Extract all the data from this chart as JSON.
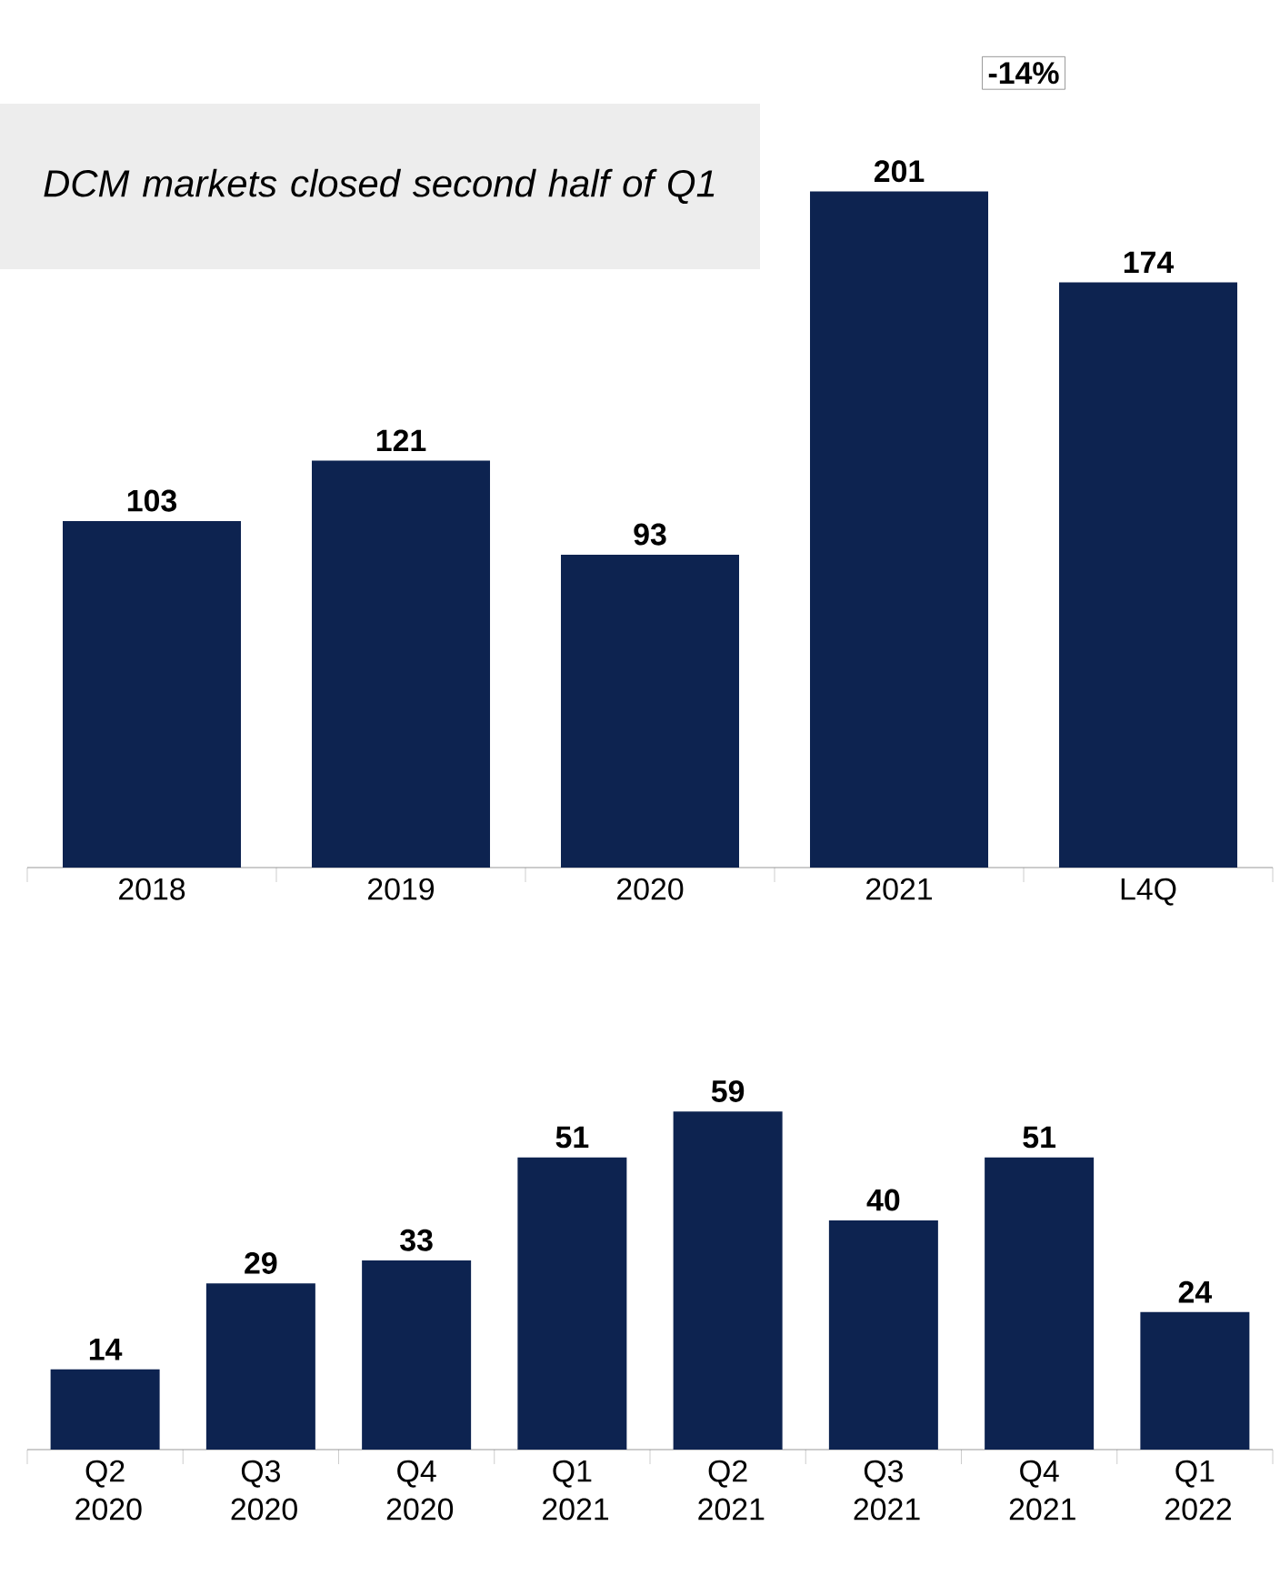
{
  "chart_data": [
    {
      "type": "bar",
      "categories": [
        "2018",
        "2019",
        "2020",
        "2021",
        "L4Q"
      ],
      "values": [
        103,
        121,
        93,
        201,
        174
      ],
      "color": "#0d2350",
      "data_labels": true,
      "annotations": [
        "DCM markets closed second half of Q1",
        "-14%"
      ]
    },
    {
      "type": "bar",
      "categories": [
        "Q2 2020",
        "Q3 2020",
        "Q4 2020",
        "Q1 2021",
        "Q2 2021",
        "Q3 2021",
        "Q4 2021",
        "Q1 2022"
      ],
      "values": [
        14,
        29,
        33,
        51,
        59,
        40,
        51,
        24
      ],
      "color": "#0d2350",
      "data_labels": true
    }
  ]
}
